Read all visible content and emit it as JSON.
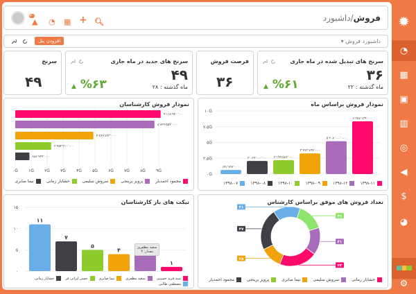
{
  "header": {
    "title_bold": "فروش",
    "title_rest": "/داشبورد",
    "icons": [
      "search-icon",
      "plus-icon",
      "calendar-icon",
      "chat-icon",
      "notification-icon",
      "avatar-icon"
    ],
    "notif_badge": "۲۰"
  },
  "toolbar": {
    "dashboard_select": "داشبورد فروش",
    "add_panel": "افزودن پنل"
  },
  "stats": [
    {
      "title": "سرنخ های تبدیل شده در ماه جاری",
      "value": "۳۶",
      "percent": "%۶۱",
      "last_month": "ماه گذشته : ۲۲"
    },
    {
      "title": "فرصت فروش",
      "value": "۳۶"
    },
    {
      "title": "سرنخ های جدید در ماه جاری",
      "value": "۴۹",
      "percent": "%۶۳",
      "last_month": "ماه گذشته : ۲۸"
    },
    {
      "title": "سرنخ",
      "value": "۴۹"
    }
  ],
  "colors": {
    "accent": "#f07a45",
    "positive": "#5fa832",
    "pink": "#ff0a6c",
    "purple": "#a86cba",
    "orange": "#f0a30a",
    "green": "#8ccc2c",
    "dark": "#3f3f46",
    "blue": "#6aaee8",
    "lightgreen": "#8ee46c"
  },
  "sidebar": {
    "items": [
      "dashboard-icon",
      "calendar-icon",
      "contacts-icon",
      "building-icon",
      "target-icon",
      "megaphone-icon",
      "invoice-icon",
      "pie-chart-icon"
    ],
    "active": 0
  },
  "chart_data": [
    {
      "type": "bar",
      "orientation": "horizontal",
      "title": "نمودار فروش کارشناسان",
      "categories": [
        "محمود احمدیار",
        "پرویز پرینجی",
        "سروش سلیمی",
        "خشایار زمانی",
        "نیما صابری"
      ],
      "values": [
        9118940000,
        8729559000,
        4899833000,
        2254310000,
        888749000
      ],
      "data_labels": [
        "۹٬۱۱۸٬۹۴۰٬۰۰۰",
        "۸٬۷۲۹٬۵۵۹٬۰۰۰",
        "۴٬۸۹۹٬۸۳۳٬۰۰۰",
        "۲٬۲۵۴٬۳۱۰٬۰۰۰",
        "۸۸۸٬۷۴۹٬۰۰۰"
      ],
      "colors": [
        "#ff0a6c",
        "#a86cba",
        "#f0a30a",
        "#8ccc2c",
        "#3f3f46"
      ],
      "xlim": [
        0,
        9000000000
      ],
      "xticks": [
        "۰G",
        "۱G",
        "۲G",
        "۳G",
        "۴G",
        "۵G",
        "۶G",
        "۷G",
        "۸G",
        "۹G"
      ],
      "grid": true,
      "legend": "bottom"
    },
    {
      "type": "bar",
      "title": "نمودار فروش براساس ماه",
      "categories": [
        "۱۳۹۸-۰۷",
        "۱۳۹۸-۰۸",
        "۱۳۹۸-۱۰",
        "۱۳۹۸-۰۹",
        "۱۳۹۸-۱۲",
        "۱۳۹۸-۱۱"
      ],
      "values": [
        641796000,
        2069000000,
        2199589000,
        3273835000,
        5208000000,
        8358139000
      ],
      "data_labels": [
        "۶۴۱٬۷۹۶٬۰۰۰",
        "۲٬۰۶۹٬۰۰۰٬۰۰۰",
        "۲٬۱۹۹٬۵۸۹٬۰۰۰",
        "۳٬۲۷۳٬۸۳۵٬۰۰۰",
        "۵٬۲۰۸٬۰۰۰٬۰۰۰",
        "۸٬۳۵۸٬۱۳۹٬۰۰۰"
      ],
      "colors": [
        "#6aaee8",
        "#3f3f46",
        "#8ccc2c",
        "#f0a30a",
        "#a86cba",
        "#ff0a6c"
      ],
      "ylim": [
        0,
        10000000000
      ],
      "yticks": [
        "۰G",
        "۲.۵G",
        "۵G",
        "۷.۵G",
        "۱۰G"
      ],
      "grid": true,
      "legend": "bottom"
    },
    {
      "type": "bar",
      "title": "تیکت های باز کارشناسان",
      "categories": [
        "مصطفی طالبی",
        "خشایار زمانی",
        "حسن ایرانی فر",
        "نیما صابری",
        "سعید مظفری",
        "سید فرید حسینی"
      ],
      "values": [
        11,
        7,
        5,
        4,
        4,
        1
      ],
      "data_labels": [
        "۱۱",
        "۷",
        "۵",
        "۴",
        "",
        "۱"
      ],
      "colors": [
        "#6aaee8",
        "#3f3f46",
        "#8ccc2c",
        "#f0a30a",
        "#a86cba",
        "#ff0a6c"
      ],
      "ylim": [
        0,
        15
      ],
      "yticks": [
        "۰",
        "۵",
        "۱۰",
        "۱۵"
      ],
      "grid": true,
      "legend": "bottom",
      "tooltip": {
        "line1": "سعید مظفری",
        "line2": "مقدار: ۴"
      }
    },
    {
      "type": "pie",
      "donut": true,
      "title": "تعداد فروش های موفق براساس کارشناس",
      "slices": [
        {
          "value": 31,
          "label": "۳۱",
          "color": "#6aaee8"
        },
        {
          "value": 31,
          "label": "۳۱",
          "color": "#8ee46c"
        },
        {
          "value": 31,
          "label": "۳۱",
          "color": "#a86cba"
        },
        {
          "value": 43,
          "label": "۴۳",
          "color": "#ff0a6c"
        },
        {
          "value": 25,
          "label": "۲۵",
          "color": "#f0a30a"
        },
        {
          "value": 47,
          "label": "۴۷",
          "color": "#3f3f46"
        }
      ],
      "legend_items": [
        {
          "name": "خشایار زمانی",
          "color": "#ff0a6c"
        },
        {
          "name": "سروش سلیمی",
          "color": "#a86cba"
        },
        {
          "name": "نیما صابری",
          "color": "#f0a30a"
        },
        {
          "name": "پرویز پرینجی",
          "color": "#8ccc2c"
        },
        {
          "name": "محمود احمدیار",
          "color": "#3f3f46"
        }
      ],
      "legend": "bottom"
    }
  ]
}
